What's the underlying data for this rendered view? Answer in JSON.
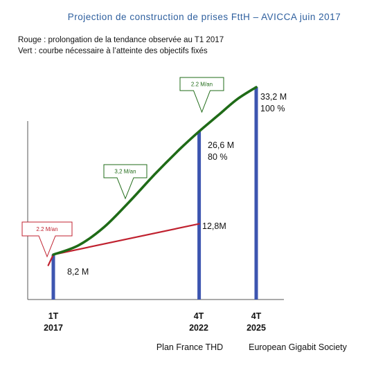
{
  "chart_data": {
    "type": "line",
    "title": "Projection de construction de prises FttH – AVICCA juin 2017",
    "legend": [
      "Rouge : prolongation de la tendance observée au T1 2017",
      "Vert : courbe nécessaire à l’atteinte des objectifs fixés"
    ],
    "x_ticks": [
      {
        "top": "1T",
        "bottom": "2017"
      },
      {
        "top": "4T",
        "bottom": "2022"
      },
      {
        "top": "4T",
        "bottom": "2025"
      }
    ],
    "bars": [
      {
        "value": 8.2,
        "label": "8,2 M"
      },
      {
        "value": 26.6,
        "label": "26,6 M",
        "label2": "80 %"
      },
      {
        "value": 33.2,
        "label": "33,2 M",
        "label2": "100 %"
      }
    ],
    "series": [
      {
        "color": "red",
        "points": [
          [
            2016.8,
            6.6
          ],
          [
            2017.0,
            8.2
          ],
          [
            2022.75,
            12.8
          ]
        ]
      },
      {
        "color": "green",
        "points": [
          [
            2017.0,
            8.2
          ],
          [
            2018.0,
            9.6
          ],
          [
            2019.0,
            12.3
          ],
          [
            2020.0,
            16.1
          ],
          [
            2021.0,
            20.2
          ],
          [
            2022.0,
            24.0
          ],
          [
            2022.75,
            26.6
          ],
          [
            2023.5,
            29.0
          ],
          [
            2024.25,
            31.4
          ],
          [
            2025.0,
            33.2
          ]
        ]
      }
    ],
    "callouts": [
      {
        "text": "2.2 M/an",
        "color": "red"
      },
      {
        "text": "3,2 M/an",
        "color": "green"
      },
      {
        "text": "2.2 M/an",
        "color": "green"
      }
    ],
    "footer": [
      "Plan France THD",
      "European Gigabit Society"
    ],
    "colors": {
      "title": "#2e5f9e",
      "bar": "#3d55b0",
      "red": "#c0212f",
      "green": "#1f6b17",
      "axis": "#555555"
    }
  }
}
